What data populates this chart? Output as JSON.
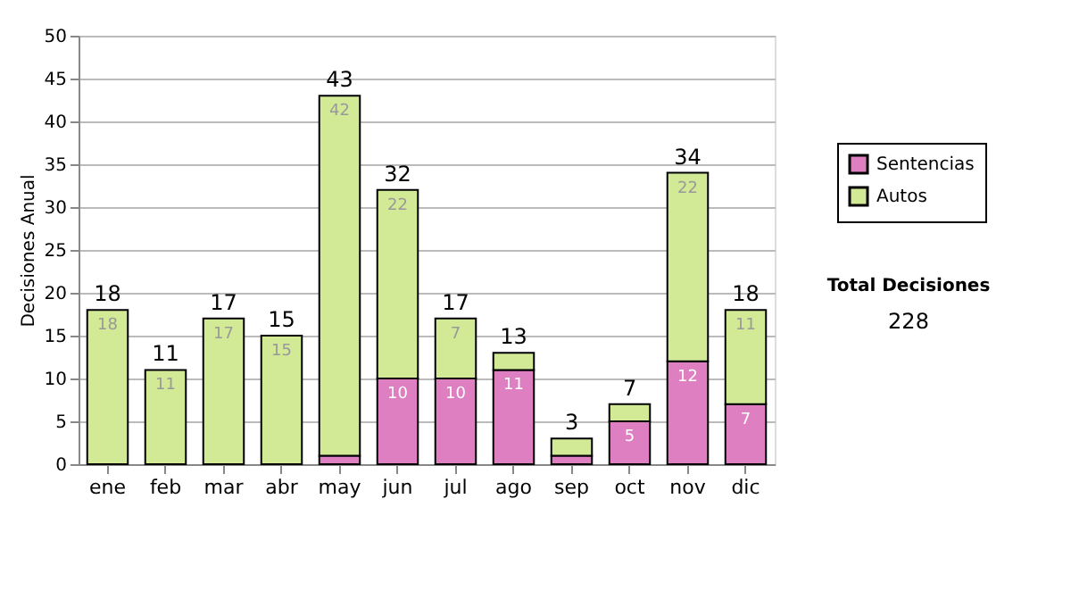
{
  "chart_data": {
    "type": "bar",
    "stacked": true,
    "ylabel": "Decisiones Anual",
    "categories": [
      "ene",
      "feb",
      "mar",
      "abr",
      "may",
      "jun",
      "jul",
      "ago",
      "sep",
      "oct",
      "nov",
      "dic"
    ],
    "series": [
      {
        "name": "Sentencias",
        "color": "#dd7fc0",
        "values": [
          0,
          0,
          0,
          0,
          1,
          10,
          10,
          11,
          1,
          5,
          12,
          7
        ],
        "value_labels": [
          null,
          null,
          null,
          null,
          null,
          "10",
          "10",
          "11",
          null,
          "5",
          "12",
          "7"
        ]
      },
      {
        "name": "Autos",
        "color": "#d2ea96",
        "values": [
          18,
          11,
          17,
          15,
          42,
          22,
          7,
          2,
          2,
          2,
          22,
          11
        ],
        "value_labels": [
          "18",
          "11",
          "17",
          "15",
          "42",
          "22",
          "7",
          null,
          null,
          null,
          "22",
          "11"
        ]
      }
    ],
    "totals": [
      "18",
      "11",
      "17",
      "15",
      "43",
      "32",
      "17",
      "13",
      "3",
      "7",
      "34",
      "18"
    ],
    "ylim": [
      0,
      50
    ],
    "yticks": [
      0,
      5,
      10,
      15,
      20,
      25,
      30,
      35,
      40,
      45,
      50
    ],
    "grid": "y",
    "legend": "right",
    "annotations": [
      "Total Decisiones",
      "228"
    ]
  }
}
